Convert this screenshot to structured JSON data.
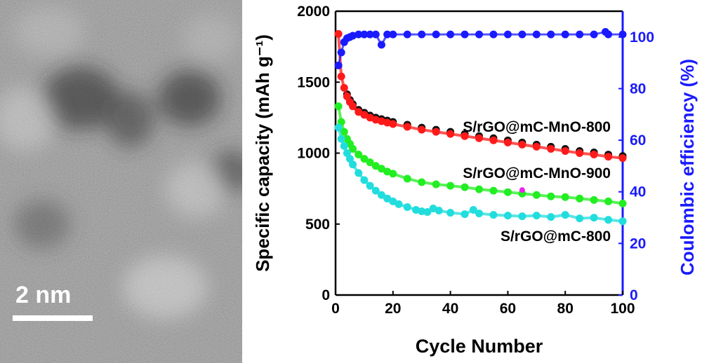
{
  "micrograph": {
    "scale_bar_label": "2 nm"
  },
  "chart_data": {
    "type": "scatter",
    "xlabel": "Cycle Number",
    "ylabel_left": "Specific capacity (mAh g⁻¹)",
    "ylabel_right": "Coulombic efficiency (%)",
    "xlim": [
      0,
      100
    ],
    "ylim_left": [
      0,
      2000
    ],
    "ylim_right": [
      0,
      110
    ],
    "x_ticks": [
      "0",
      "20",
      "40",
      "60",
      "80",
      "100"
    ],
    "y_ticks_left": [
      "0",
      "500",
      "1000",
      "1500",
      "2000"
    ],
    "y_ticks_right": [
      "0",
      "20",
      "40",
      "60",
      "80",
      "100"
    ],
    "colors": {
      "mno800": "#ff1a1a",
      "mno800_under": "#111111",
      "mno900": "#22ee22",
      "c800": "#22dddd",
      "ce": "#1a1aff",
      "right_axis": "#1a1aff",
      "outlier": "#ee22ee"
    },
    "series": [
      {
        "name": "S/rGO@mC-MnO-800",
        "axis": "left",
        "x": [
          1,
          2,
          3,
          4,
          5,
          6,
          8,
          10,
          12,
          14,
          16,
          18,
          20,
          25,
          30,
          35,
          40,
          45,
          50,
          55,
          60,
          65,
          70,
          75,
          80,
          85,
          90,
          95,
          100
        ],
        "y": [
          1840,
          1540,
          1460,
          1400,
          1360,
          1330,
          1290,
          1270,
          1250,
          1235,
          1225,
          1215,
          1205,
          1185,
          1165,
          1150,
          1135,
          1120,
          1105,
          1090,
          1075,
          1060,
          1045,
          1030,
          1015,
          1000,
          990,
          975,
          965
        ]
      },
      {
        "name": "S/rGO@mC-MnO-900",
        "axis": "left",
        "x": [
          1,
          2,
          3,
          4,
          5,
          6,
          8,
          10,
          12,
          14,
          16,
          18,
          20,
          25,
          30,
          35,
          40,
          45,
          50,
          55,
          60,
          65,
          70,
          75,
          80,
          85,
          90,
          95,
          100
        ],
        "y": [
          1330,
          1220,
          1150,
          1100,
          1065,
          1030,
          990,
          960,
          935,
          910,
          890,
          870,
          855,
          820,
          795,
          780,
          770,
          760,
          745,
          735,
          725,
          715,
          705,
          695,
          690,
          680,
          670,
          660,
          645
        ]
      },
      {
        "name": "S/rGO@mC-800",
        "axis": "left",
        "x": [
          1,
          2,
          3,
          4,
          5,
          6,
          8,
          10,
          12,
          14,
          16,
          18,
          20,
          22,
          25,
          28,
          30,
          32,
          34,
          36,
          40,
          45,
          48,
          50,
          55,
          60,
          65,
          70,
          75,
          80,
          85,
          90,
          95,
          100
        ],
        "y": [
          1180,
          1100,
          1050,
          1000,
          960,
          920,
          860,
          810,
          770,
          735,
          705,
          680,
          660,
          640,
          620,
          600,
          590,
          585,
          610,
          595,
          580,
          570,
          600,
          575,
          565,
          560,
          555,
          560,
          550,
          565,
          540,
          545,
          530,
          520
        ]
      },
      {
        "name": "",
        "axis": "right",
        "x": [
          1,
          2,
          3,
          4,
          5,
          6,
          8,
          10,
          12,
          14,
          16,
          18,
          20,
          25,
          30,
          35,
          40,
          45,
          50,
          55,
          60,
          65,
          70,
          75,
          80,
          85,
          90,
          94,
          95,
          100
        ],
        "y": [
          89,
          94,
          98,
          99.5,
          100,
          100.5,
          101,
          101,
          101,
          101,
          97,
          101,
          101,
          101,
          101,
          101,
          101,
          101,
          101,
          101,
          101,
          101,
          101,
          101,
          101,
          101,
          101,
          102,
          101,
          101
        ]
      }
    ],
    "outliers": [
      {
        "x": 65,
        "y": 740,
        "axis": "left"
      }
    ]
  }
}
